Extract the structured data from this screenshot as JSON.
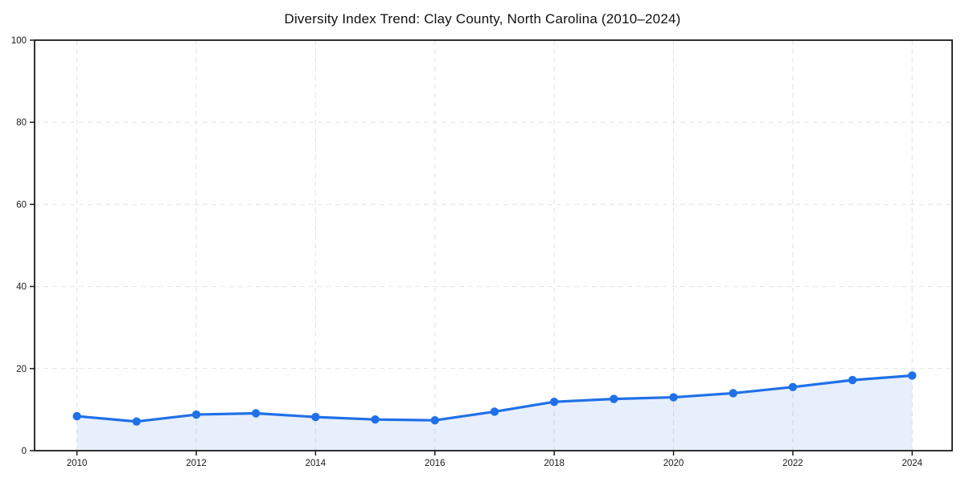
{
  "chart_data": {
    "type": "area",
    "title": "Diversity Index Trend: Clay County, North Carolina (2010–2024)",
    "xlabel": "",
    "ylabel": "",
    "x": [
      2010,
      2011,
      2012,
      2013,
      2014,
      2015,
      2016,
      2017,
      2018,
      2019,
      2020,
      2021,
      2022,
      2023,
      2024
    ],
    "series": [
      {
        "name": "Diversity Index",
        "values": [
          8.4,
          7.1,
          8.8,
          9.1,
          8.2,
          7.6,
          7.4,
          9.5,
          11.9,
          12.6,
          13.0,
          14.0,
          15.5,
          17.2,
          18.3
        ]
      }
    ],
    "xlim": [
      2009.29,
      2024.67
    ],
    "ylim": [
      0,
      100
    ],
    "xticks": [
      2010,
      2012,
      2014,
      2016,
      2018,
      2020,
      2022,
      2024
    ],
    "yticks": [
      0,
      20,
      40,
      60,
      80,
      100
    ],
    "grid": true,
    "grid_style": "dashed",
    "legend_position": "none",
    "colors": {
      "line": "#2070e8",
      "marker": "#2070e8",
      "fill": "#2070e8",
      "fill_opacity": 0.11,
      "grid": "#e2e2e2",
      "frame": "#1a1a1a",
      "tick": "#1a1a1a",
      "text": "#1a1a1a",
      "background": "#ffffff"
    }
  }
}
